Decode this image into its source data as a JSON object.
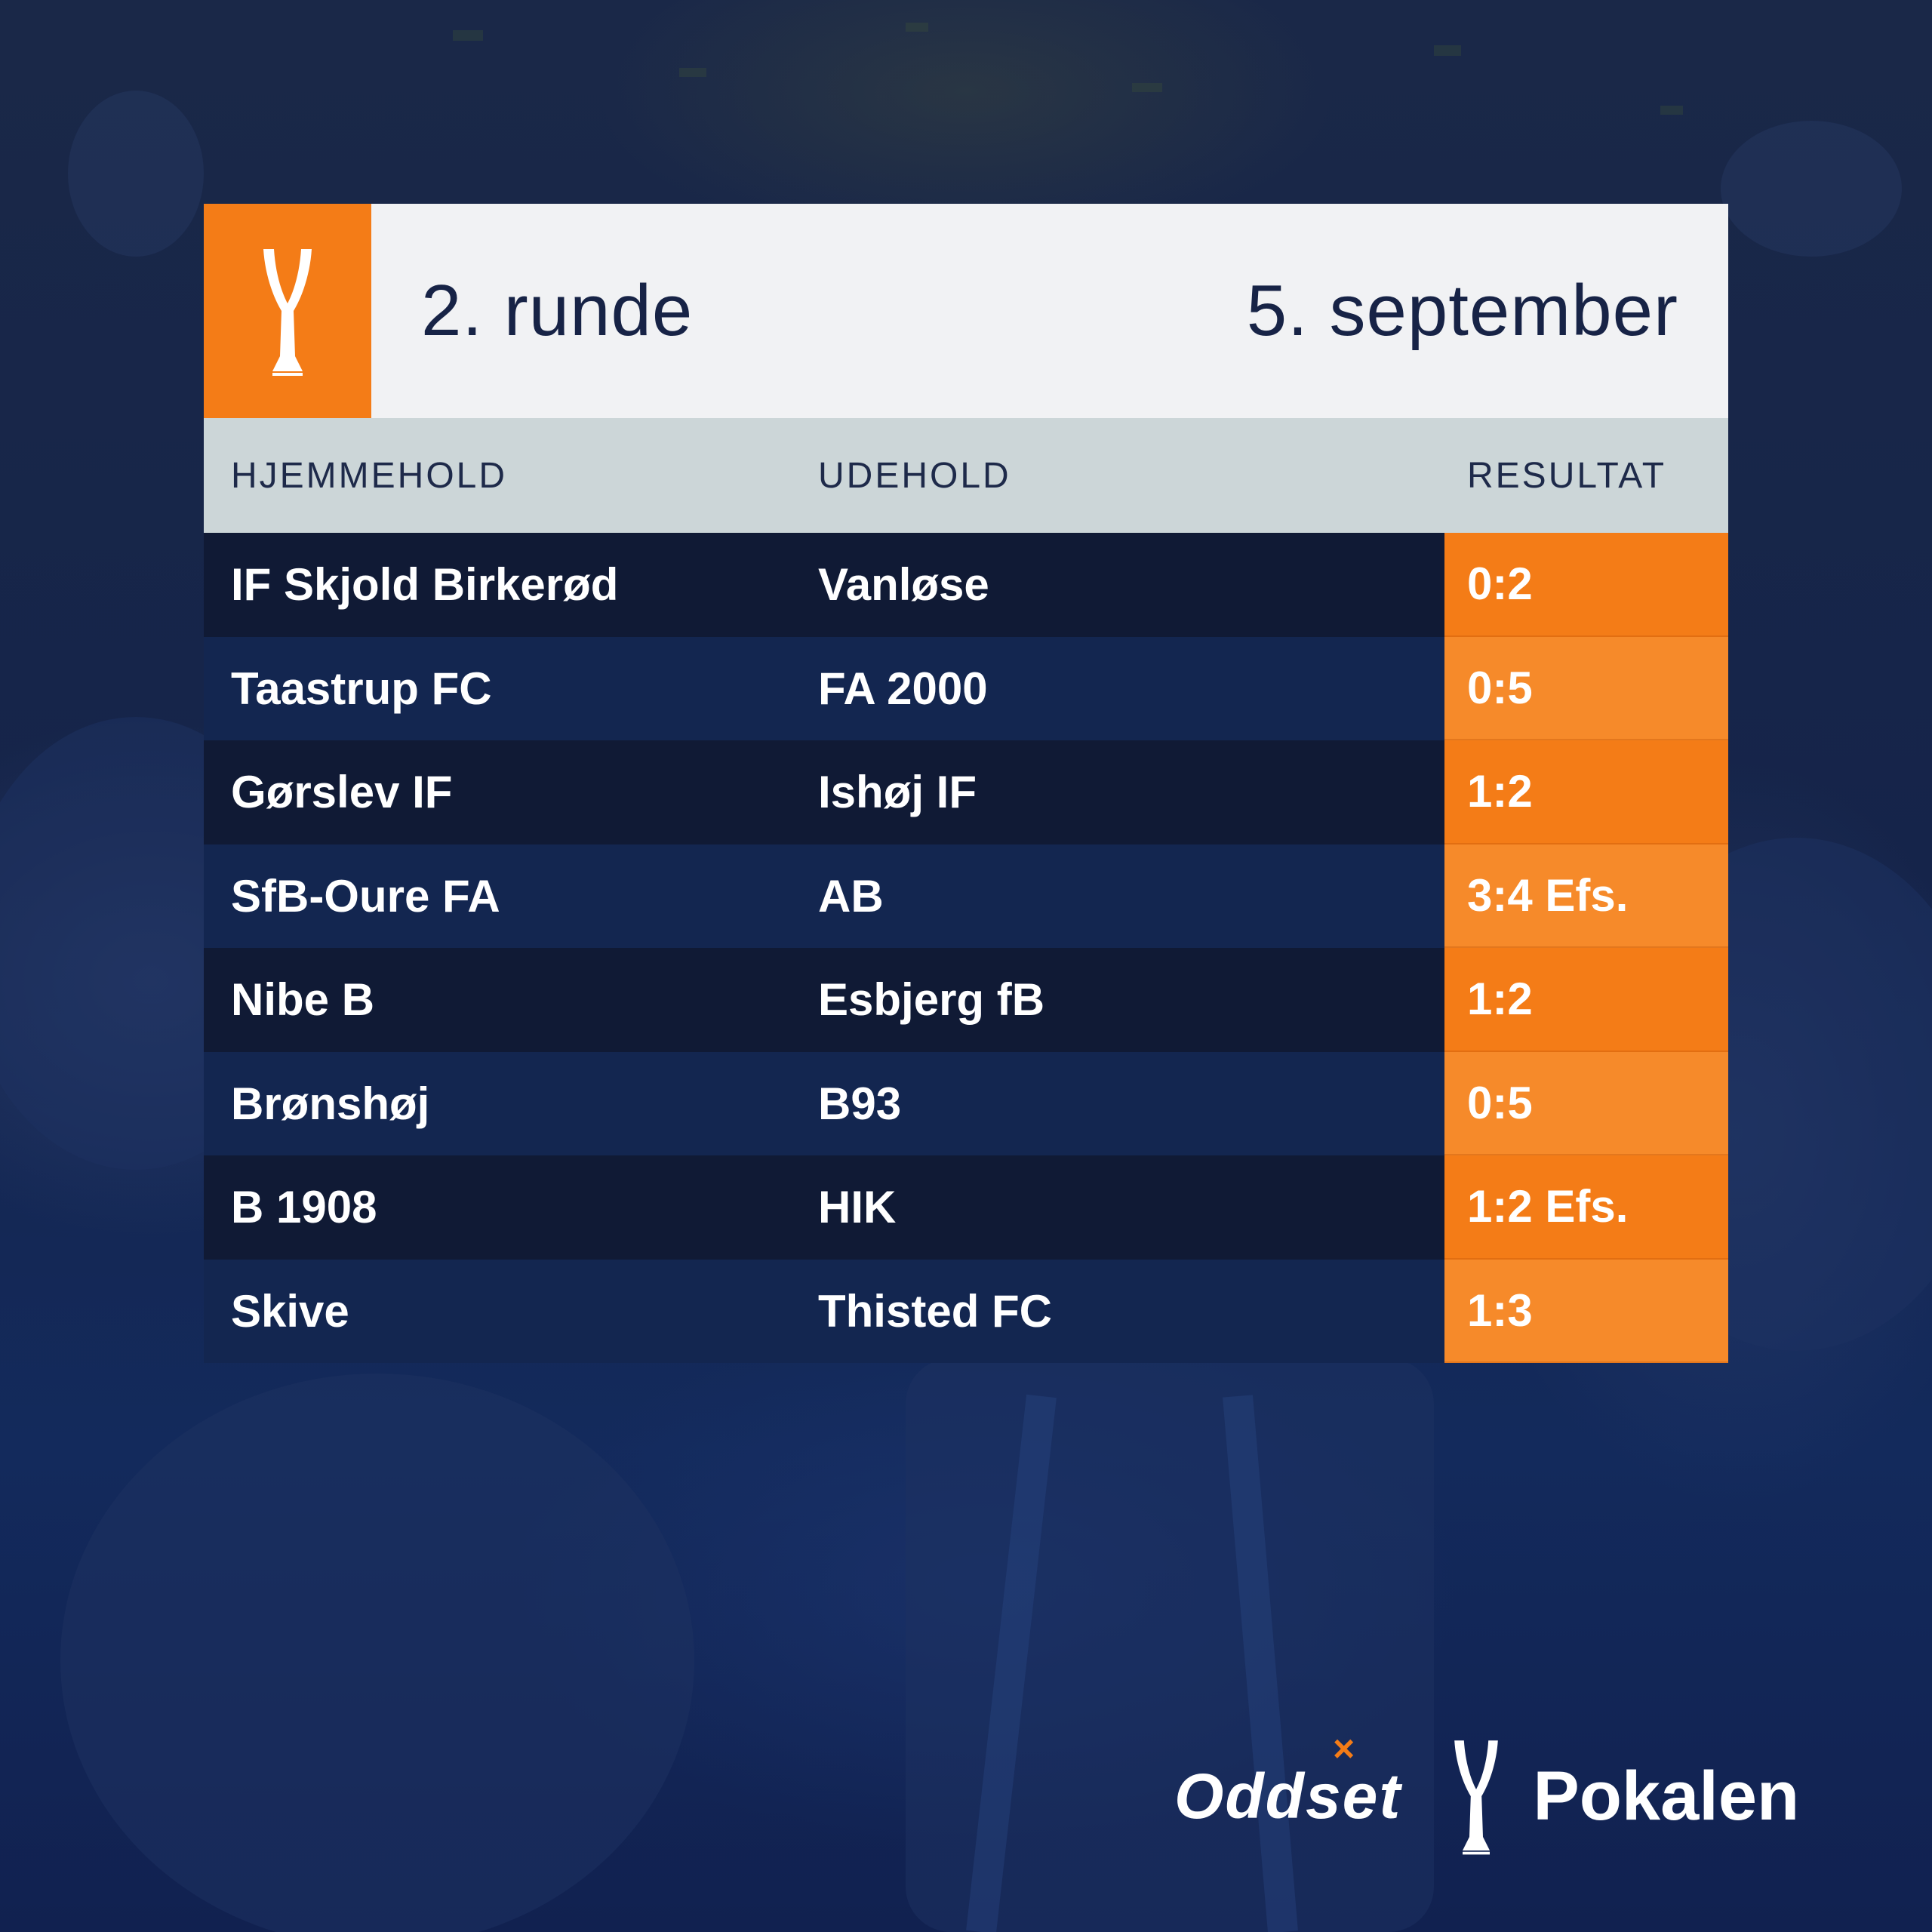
{
  "header": {
    "round": "2. runde",
    "date": "5. september"
  },
  "table": {
    "columns": [
      "HJEMMEHOLD",
      "UDEHOLD",
      "RESULTAT"
    ],
    "rows": [
      {
        "home": "IF Skjold Birkerød",
        "away": "Vanløse",
        "result": "0:2"
      },
      {
        "home": "Taastrup FC",
        "away": "FA 2000",
        "result": "0:5"
      },
      {
        "home": "Gørslev IF",
        "away": "Ishøj IF",
        "result": "1:2"
      },
      {
        "home": "SfB-Oure FA",
        "away": "AB",
        "result": "3:4 Efs."
      },
      {
        "home": "Nibe B",
        "away": "Esbjerg fB",
        "result": "1:2"
      },
      {
        "home": "Brønshøj",
        "away": "B93",
        "result": "0:5"
      },
      {
        "home": "B 1908",
        "away": "HIK",
        "result": "1:2 Efs."
      },
      {
        "home": "Skive",
        "away": "Thisted FC",
        "result": "1:3"
      }
    ]
  },
  "footer": {
    "sponsor": "Oddset",
    "sponsor_mark": "×",
    "competition": "Pokalen"
  },
  "colors": {
    "accent_orange": "#f47c17",
    "navy": "#142346",
    "header_bg": "#f1f2f4",
    "column_header_bg": "#ccd6d8"
  },
  "icons": {
    "header_logo": "trophy-cup-icon",
    "footer_logo": "trophy-cup-icon"
  }
}
